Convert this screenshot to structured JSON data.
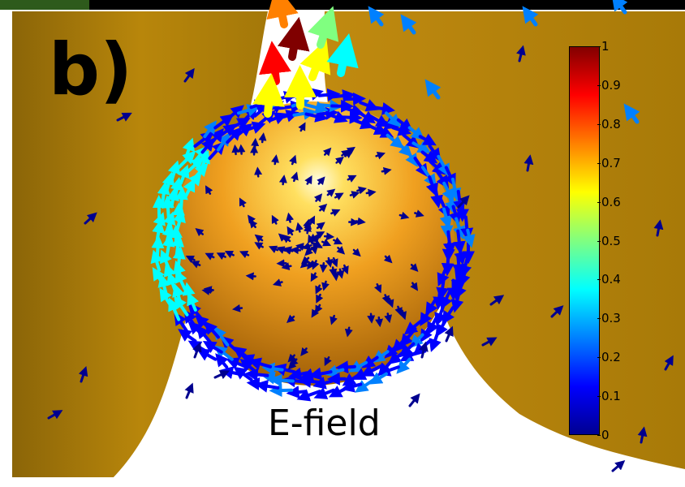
{
  "panel_label": "b)",
  "caption": "E-field",
  "colorbar": {
    "ticks": [
      "0",
      "0.1",
      "0.2",
      "0.3",
      "0.4",
      "0.5",
      "0.6",
      "0.7",
      "0.8",
      "0.9",
      "1"
    ],
    "min": 0,
    "max": 1,
    "colormap": "jet",
    "colors": [
      "#00008f",
      "#0000ff",
      "#0080ff",
      "#00ffff",
      "#80ff80",
      "#ffff00",
      "#ff8000",
      "#ff0000",
      "#800000"
    ]
  },
  "colors": {
    "background": "#ffffff",
    "surface": "#b8860b",
    "surface_dark": "#8b6508",
    "sphere_highlight": "#fffde0",
    "sphere_mid": "#f0a020",
    "sphere_edge": "#9a5a05"
  },
  "caption_reference": "E-field"
}
